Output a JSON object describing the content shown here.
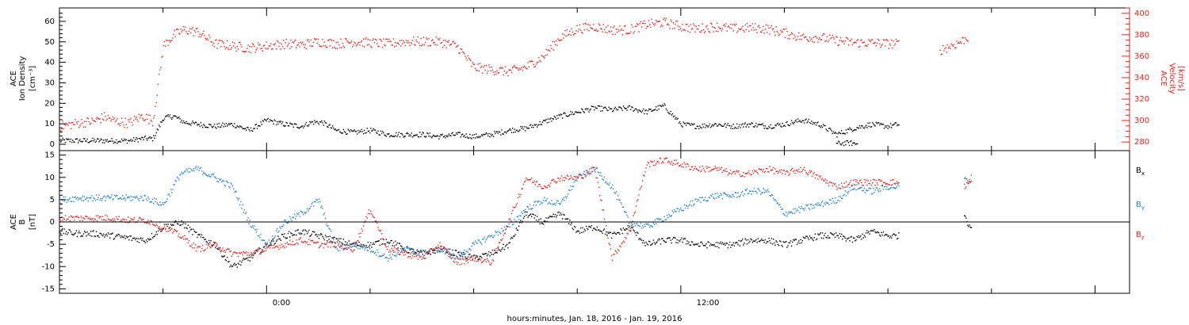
{
  "footer": {
    "xlabel": "hours:minutes, Jan. 18, 2016 - Jan. 19, 2016"
  },
  "colors": {
    "black": "#000000",
    "red": "#e8221b",
    "blue": "#1e7fd6"
  },
  "chart_data": [
    {
      "type": "scatter",
      "panel": "top",
      "ylabel_left": [
        "ACE",
        "Ion Density",
        "[cm⁻³]"
      ],
      "ylabel_right": [
        "ACE",
        "Velocity",
        "[km/s]"
      ],
      "ylim_left": [
        0,
        65
      ],
      "ylim_right": [
        272,
        405
      ],
      "yticks_left": [
        "0",
        "10",
        "20",
        "30",
        "40",
        "50",
        "60"
      ],
      "yticks_right": [
        "280",
        "300",
        "320",
        "340",
        "360",
        "380",
        "400"
      ],
      "xlim_hours": [
        -6,
        25
      ],
      "xticks": [
        {
          "hour": 0,
          "label": "0:00"
        },
        {
          "hour": 12,
          "label": "12:00"
        }
      ],
      "grid": false,
      "series": [
        {
          "axis": "left",
          "color": "black",
          "x": [
            -6,
            -5.5,
            -5,
            -4.5,
            -4,
            -3.6,
            -3.3,
            -3,
            -2.7,
            -2.4,
            -2,
            -1.5,
            -1,
            -0.5,
            0,
            0.5,
            1,
            1.3,
            1.6,
            2,
            2.5,
            3,
            3.5,
            4,
            4.5,
            5,
            5.5,
            6,
            6.5,
            7,
            7.5,
            8,
            8.5,
            9,
            9.5,
            10,
            10.5,
            11,
            11.5,
            12,
            12.5,
            13,
            13.5,
            14,
            14.5,
            15,
            15.5,
            16,
            16.5,
            17,
            17.5,
            18,
            18.3
          ],
          "y": [
            2,
            2,
            2,
            2,
            2,
            3,
            3,
            13,
            14,
            11,
            10,
            9,
            10,
            7,
            12,
            10,
            9,
            11,
            11,
            7,
            6,
            7,
            5,
            5,
            5,
            4,
            5,
            4,
            5,
            7,
            8,
            11,
            14,
            16,
            18,
            17,
            18,
            16,
            19,
            10,
            9,
            10,
            9,
            10,
            9,
            10,
            12,
            10,
            5,
            8,
            10,
            9,
            10
          ]
        },
        {
          "axis": "left",
          "color": "black",
          "x": [
            16.5,
            16.7,
            16.9,
            17.1
          ],
          "y": [
            0.5,
            0.8,
            0.8,
            0.5
          ]
        },
        {
          "axis": "right",
          "color": "red",
          "x": [
            -6,
            -5.5,
            -5,
            -4.7,
            -4.4,
            -4,
            -3.6,
            -3.3,
            -3,
            -2.7,
            -2.4,
            -2,
            -1.5,
            -1,
            -0.5,
            0,
            0.5,
            1,
            1.5,
            2,
            2.5,
            3,
            3.5,
            4,
            4.5,
            5,
            5.5,
            6,
            6.5,
            7,
            7.5,
            8,
            8.5,
            9,
            9.5,
            10,
            10.5,
            11,
            11.5,
            12,
            12.5,
            13,
            13.5,
            14,
            14.5,
            15,
            15.5,
            16,
            16.5,
            17,
            17.5,
            18,
            18.3
          ],
          "y": [
            295,
            298,
            300,
            304,
            300,
            298,
            305,
            300,
            370,
            380,
            385,
            383,
            372,
            370,
            368,
            370,
            372,
            371,
            374,
            372,
            374,
            373,
            372,
            374,
            374,
            374,
            370,
            350,
            348,
            346,
            350,
            360,
            378,
            386,
            388,
            385,
            385,
            390,
            392,
            388,
            386,
            388,
            386,
            387,
            386,
            382,
            378,
            378,
            375,
            373,
            373,
            372,
            372
          ]
        },
        {
          "axis": "right",
          "color": "red",
          "x": [
            19.5,
            19.8,
            20.1,
            20.3
          ],
          "y": [
            366,
            370,
            374,
            378
          ]
        }
      ]
    },
    {
      "type": "scatter",
      "panel": "bottom",
      "ylabel_left": [
        "ACE",
        "B",
        "[nT]"
      ],
      "ylim": [
        -16,
        16
      ],
      "yticks": [
        "-15",
        "-10",
        "-5",
        "0",
        "5",
        "10",
        "15"
      ],
      "zero_line": true,
      "xlim_hours": [
        -6,
        25
      ],
      "legend": [
        "Bx",
        "By",
        "Bz"
      ],
      "legend_placement": "right",
      "series": [
        {
          "name": "Bx",
          "color": "black",
          "x": [
            -6,
            -5.5,
            -5,
            -4.5,
            -4,
            -3.5,
            -3,
            -2.5,
            -2,
            -1.5,
            -1,
            -0.5,
            0,
            0.5,
            1,
            1.5,
            2,
            2.5,
            3,
            3.5,
            4,
            4.5,
            5,
            5.5,
            6,
            6.5,
            7,
            7.5,
            8,
            8.5,
            9,
            9.5,
            10,
            10.5,
            11,
            11.5,
            12,
            12.5,
            13,
            13.5,
            14,
            14.5,
            15,
            15.5,
            16,
            16.5,
            17,
            17.5,
            18,
            18.3
          ],
          "y": [
            -2,
            -2.5,
            -2.5,
            -3,
            -3.5,
            -4,
            -1,
            0,
            -3,
            -5,
            -10,
            -8,
            -5,
            -3,
            -2,
            -3,
            -4,
            -5,
            -5,
            -4,
            -6,
            -7,
            -6,
            -7,
            -8,
            -7,
            -5,
            2,
            0,
            2,
            -2,
            -1,
            -3,
            -1,
            -5,
            -4,
            -4,
            -5,
            -5,
            -5,
            -4,
            -4,
            -5,
            -4,
            -3,
            -3,
            -4,
            -2,
            -3,
            -3
          ]
        },
        {
          "name": "Bx",
          "color": "black",
          "x": [
            20.2,
            20.3,
            20.4
          ],
          "y": [
            2,
            0,
            -1
          ]
        },
        {
          "name": "By",
          "color": "blue",
          "x": [
            -6,
            -5.5,
            -5,
            -4.5,
            -4,
            -3.5,
            -3,
            -2.5,
            -2,
            -1.5,
            -1,
            -0.5,
            0,
            0.5,
            1,
            1.5,
            2,
            2.5,
            3,
            3.5,
            4,
            4.5,
            5,
            5.5,
            6,
            6.5,
            7,
            7.5,
            8,
            8.5,
            9,
            9.5,
            10,
            10.5,
            11,
            11.5,
            12,
            12.5,
            13,
            13.5,
            14,
            14.5,
            15,
            15.5,
            16,
            16.5,
            17,
            17.5,
            18,
            18.3
          ],
          "y": [
            5,
            5.5,
            5.5,
            5.5,
            5.5,
            5.5,
            4,
            11,
            12,
            10,
            8,
            0,
            -5,
            0,
            2,
            5,
            -6,
            -5,
            -6,
            -8,
            -6,
            -7,
            -6,
            -8,
            -5,
            -3,
            -1,
            3,
            5,
            4,
            10,
            12,
            8,
            0,
            -1,
            1,
            3,
            5,
            6,
            6,
            7,
            7,
            2,
            3,
            4,
            5,
            8,
            7,
            8,
            8
          ]
        },
        {
          "name": "By",
          "color": "blue",
          "x": [
            20.2,
            20.3,
            20.4
          ],
          "y": [
            10,
            9,
            10
          ]
        },
        {
          "name": "Bz",
          "color": "red",
          "x": [
            -6,
            -5.5,
            -5,
            -4.5,
            -4,
            -3.5,
            -3,
            -2.5,
            -2,
            -1.5,
            -1,
            -0.5,
            0,
            0.5,
            1,
            1.5,
            2,
            2.5,
            3,
            3.5,
            4,
            4.5,
            5,
            5.5,
            6,
            6.5,
            7,
            7.5,
            8,
            8.5,
            9,
            9.5,
            10,
            10.5,
            11,
            11.5,
            12,
            12.5,
            13,
            13.5,
            14,
            14.5,
            15,
            15.5,
            16,
            16.5,
            17,
            17.5,
            18,
            18.3
          ],
          "y": [
            1,
            1,
            1,
            1,
            0.5,
            0.5,
            -1,
            -3,
            -6,
            -5,
            -7,
            -7,
            -6,
            -5,
            -4,
            -5,
            -5,
            -6,
            3,
            -6,
            -7,
            -8,
            -5,
            -9,
            -8,
            -9,
            0,
            10,
            8,
            10,
            10,
            12,
            -8,
            -2,
            13,
            14,
            13,
            12,
            12,
            11,
            11,
            12,
            11,
            12,
            10,
            8,
            9,
            9,
            9,
            9
          ]
        },
        {
          "name": "Bz",
          "color": "red",
          "x": [
            20.2,
            20.3,
            20.4
          ],
          "y": [
            8,
            9,
            9
          ]
        }
      ]
    }
  ]
}
